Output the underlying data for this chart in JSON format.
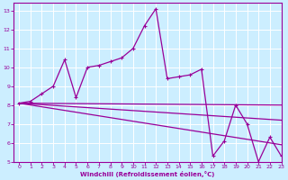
{
  "xlabel": "Windchill (Refroidissement éolien,°C)",
  "bg_color": "#cceeff",
  "line_color": "#990099",
  "grid_color": "#ffffff",
  "xlim": [
    -0.5,
    23
  ],
  "ylim": [
    5,
    13.4
  ],
  "yticks": [
    5,
    6,
    7,
    8,
    9,
    10,
    11,
    12,
    13
  ],
  "xticks": [
    0,
    1,
    2,
    3,
    4,
    5,
    6,
    7,
    8,
    9,
    10,
    11,
    12,
    13,
    14,
    15,
    16,
    17,
    18,
    19,
    20,
    21,
    22,
    23
  ],
  "hours": [
    0,
    1,
    2,
    3,
    4,
    5,
    6,
    7,
    8,
    9,
    10,
    11,
    12,
    13,
    14,
    15,
    16,
    17,
    18,
    19,
    20,
    21,
    22,
    23
  ],
  "temp": [
    8.1,
    8.2,
    8.6,
    9.0,
    10.4,
    8.4,
    10.0,
    10.1,
    10.3,
    10.5,
    11.0,
    12.2,
    13.1,
    9.4,
    9.5,
    9.6,
    9.9,
    5.3,
    6.1,
    8.0,
    7.0,
    5.0,
    6.3,
    5.3
  ],
  "reg1_start": 8.1,
  "reg1_end": 8.0,
  "reg2_start": 8.1,
  "reg2_end": 7.2,
  "reg3_start": 8.1,
  "reg3_end": 5.9
}
